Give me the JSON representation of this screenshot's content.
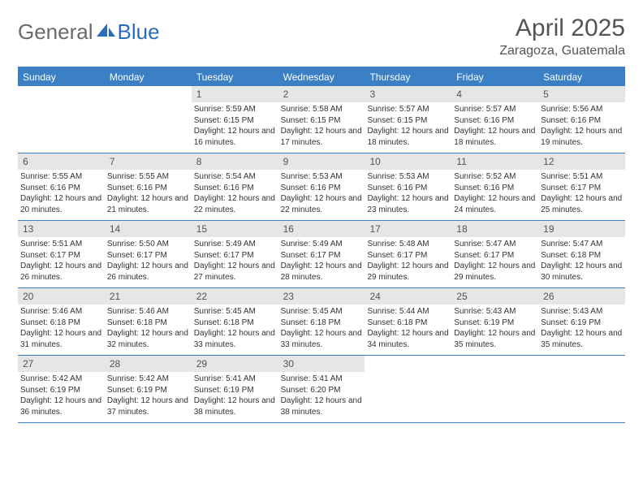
{
  "brand": {
    "part1": "General",
    "part2": "Blue"
  },
  "title": "April 2025",
  "location": "Zaragoza, Guatemala",
  "colors": {
    "header_bg": "#3b7fc4",
    "header_text": "#ffffff",
    "daynum_bg": "#e6e6e6",
    "text": "#333333",
    "title_color": "#545454"
  },
  "weekdays": [
    "Sunday",
    "Monday",
    "Tuesday",
    "Wednesday",
    "Thursday",
    "Friday",
    "Saturday"
  ],
  "weeks": [
    [
      {
        "n": "",
        "sr": "",
        "ss": "",
        "dl": ""
      },
      {
        "n": "",
        "sr": "",
        "ss": "",
        "dl": ""
      },
      {
        "n": "1",
        "sr": "Sunrise: 5:59 AM",
        "ss": "Sunset: 6:15 PM",
        "dl": "Daylight: 12 hours and 16 minutes."
      },
      {
        "n": "2",
        "sr": "Sunrise: 5:58 AM",
        "ss": "Sunset: 6:15 PM",
        "dl": "Daylight: 12 hours and 17 minutes."
      },
      {
        "n": "3",
        "sr": "Sunrise: 5:57 AM",
        "ss": "Sunset: 6:15 PM",
        "dl": "Daylight: 12 hours and 18 minutes."
      },
      {
        "n": "4",
        "sr": "Sunrise: 5:57 AM",
        "ss": "Sunset: 6:16 PM",
        "dl": "Daylight: 12 hours and 18 minutes."
      },
      {
        "n": "5",
        "sr": "Sunrise: 5:56 AM",
        "ss": "Sunset: 6:16 PM",
        "dl": "Daylight: 12 hours and 19 minutes."
      }
    ],
    [
      {
        "n": "6",
        "sr": "Sunrise: 5:55 AM",
        "ss": "Sunset: 6:16 PM",
        "dl": "Daylight: 12 hours and 20 minutes."
      },
      {
        "n": "7",
        "sr": "Sunrise: 5:55 AM",
        "ss": "Sunset: 6:16 PM",
        "dl": "Daylight: 12 hours and 21 minutes."
      },
      {
        "n": "8",
        "sr": "Sunrise: 5:54 AM",
        "ss": "Sunset: 6:16 PM",
        "dl": "Daylight: 12 hours and 22 minutes."
      },
      {
        "n": "9",
        "sr": "Sunrise: 5:53 AM",
        "ss": "Sunset: 6:16 PM",
        "dl": "Daylight: 12 hours and 22 minutes."
      },
      {
        "n": "10",
        "sr": "Sunrise: 5:53 AM",
        "ss": "Sunset: 6:16 PM",
        "dl": "Daylight: 12 hours and 23 minutes."
      },
      {
        "n": "11",
        "sr": "Sunrise: 5:52 AM",
        "ss": "Sunset: 6:16 PM",
        "dl": "Daylight: 12 hours and 24 minutes."
      },
      {
        "n": "12",
        "sr": "Sunrise: 5:51 AM",
        "ss": "Sunset: 6:17 PM",
        "dl": "Daylight: 12 hours and 25 minutes."
      }
    ],
    [
      {
        "n": "13",
        "sr": "Sunrise: 5:51 AM",
        "ss": "Sunset: 6:17 PM",
        "dl": "Daylight: 12 hours and 26 minutes."
      },
      {
        "n": "14",
        "sr": "Sunrise: 5:50 AM",
        "ss": "Sunset: 6:17 PM",
        "dl": "Daylight: 12 hours and 26 minutes."
      },
      {
        "n": "15",
        "sr": "Sunrise: 5:49 AM",
        "ss": "Sunset: 6:17 PM",
        "dl": "Daylight: 12 hours and 27 minutes."
      },
      {
        "n": "16",
        "sr": "Sunrise: 5:49 AM",
        "ss": "Sunset: 6:17 PM",
        "dl": "Daylight: 12 hours and 28 minutes."
      },
      {
        "n": "17",
        "sr": "Sunrise: 5:48 AM",
        "ss": "Sunset: 6:17 PM",
        "dl": "Daylight: 12 hours and 29 minutes."
      },
      {
        "n": "18",
        "sr": "Sunrise: 5:47 AM",
        "ss": "Sunset: 6:17 PM",
        "dl": "Daylight: 12 hours and 29 minutes."
      },
      {
        "n": "19",
        "sr": "Sunrise: 5:47 AM",
        "ss": "Sunset: 6:18 PM",
        "dl": "Daylight: 12 hours and 30 minutes."
      }
    ],
    [
      {
        "n": "20",
        "sr": "Sunrise: 5:46 AM",
        "ss": "Sunset: 6:18 PM",
        "dl": "Daylight: 12 hours and 31 minutes."
      },
      {
        "n": "21",
        "sr": "Sunrise: 5:46 AM",
        "ss": "Sunset: 6:18 PM",
        "dl": "Daylight: 12 hours and 32 minutes."
      },
      {
        "n": "22",
        "sr": "Sunrise: 5:45 AM",
        "ss": "Sunset: 6:18 PM",
        "dl": "Daylight: 12 hours and 33 minutes."
      },
      {
        "n": "23",
        "sr": "Sunrise: 5:45 AM",
        "ss": "Sunset: 6:18 PM",
        "dl": "Daylight: 12 hours and 33 minutes."
      },
      {
        "n": "24",
        "sr": "Sunrise: 5:44 AM",
        "ss": "Sunset: 6:18 PM",
        "dl": "Daylight: 12 hours and 34 minutes."
      },
      {
        "n": "25",
        "sr": "Sunrise: 5:43 AM",
        "ss": "Sunset: 6:19 PM",
        "dl": "Daylight: 12 hours and 35 minutes."
      },
      {
        "n": "26",
        "sr": "Sunrise: 5:43 AM",
        "ss": "Sunset: 6:19 PM",
        "dl": "Daylight: 12 hours and 35 minutes."
      }
    ],
    [
      {
        "n": "27",
        "sr": "Sunrise: 5:42 AM",
        "ss": "Sunset: 6:19 PM",
        "dl": "Daylight: 12 hours and 36 minutes."
      },
      {
        "n": "28",
        "sr": "Sunrise: 5:42 AM",
        "ss": "Sunset: 6:19 PM",
        "dl": "Daylight: 12 hours and 37 minutes."
      },
      {
        "n": "29",
        "sr": "Sunrise: 5:41 AM",
        "ss": "Sunset: 6:19 PM",
        "dl": "Daylight: 12 hours and 38 minutes."
      },
      {
        "n": "30",
        "sr": "Sunrise: 5:41 AM",
        "ss": "Sunset: 6:20 PM",
        "dl": "Daylight: 12 hours and 38 minutes."
      },
      {
        "n": "",
        "sr": "",
        "ss": "",
        "dl": ""
      },
      {
        "n": "",
        "sr": "",
        "ss": "",
        "dl": ""
      },
      {
        "n": "",
        "sr": "",
        "ss": "",
        "dl": ""
      }
    ]
  ]
}
